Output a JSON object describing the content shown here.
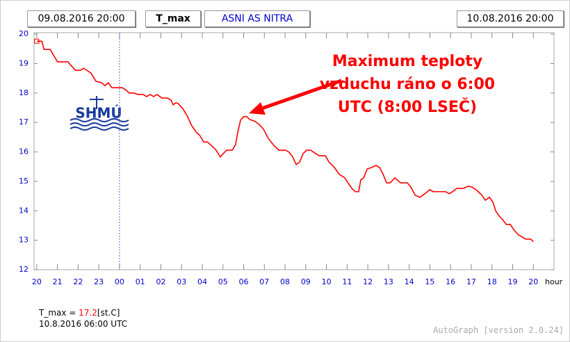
{
  "header": {
    "start": "09.08.2016 20:00",
    "station": "ASNI AS NITRA",
    "end": "10.08.2016 20:00"
  },
  "chart_data": {
    "type": "line",
    "logo": "SHMÚ",
    "annotation": [
      "Maximum teploty",
      "vzduchu ráno o 6:00",
      "UTC (8:00 LSEČ)"
    ],
    "x_label": "hour",
    "xlim": [
      -0.13,
      25
    ],
    "ylim": [
      12,
      20.05
    ],
    "xticks": [
      {
        "value": 0,
        "label": "20"
      },
      {
        "value": 1,
        "label": "21"
      },
      {
        "value": 2,
        "label": "22"
      },
      {
        "value": 3,
        "label": "23"
      },
      {
        "value": 4,
        "label": "00"
      },
      {
        "value": 5,
        "label": "01"
      },
      {
        "value": 6,
        "label": "02"
      },
      {
        "value": 7,
        "label": "03"
      },
      {
        "value": 8,
        "label": "04"
      },
      {
        "value": 9,
        "label": "05"
      },
      {
        "value": 10,
        "label": "06"
      },
      {
        "value": 11,
        "label": "07"
      },
      {
        "value": 12,
        "label": "08"
      },
      {
        "value": 13,
        "label": "09"
      },
      {
        "value": 14,
        "label": "10"
      },
      {
        "value": 15,
        "label": "11"
      },
      {
        "value": 16,
        "label": "12"
      },
      {
        "value": 17,
        "label": "13"
      },
      {
        "value": 18,
        "label": "14"
      },
      {
        "value": 19,
        "label": "15"
      },
      {
        "value": 20,
        "label": "16"
      },
      {
        "value": 21,
        "label": "17"
      },
      {
        "value": 22,
        "label": "18"
      },
      {
        "value": 23,
        "label": "19"
      },
      {
        "value": 24,
        "label": "20"
      }
    ],
    "yticks": [
      12,
      13,
      14,
      15,
      16,
      17,
      18,
      19,
      20
    ],
    "x": [
      0,
      0.25,
      0.35,
      0.65,
      1.0,
      1.5,
      1.87,
      2.1,
      2.27,
      2.62,
      2.86,
      3.13,
      3.3,
      3.46,
      3.63,
      4.13,
      4.3,
      4.47,
      4.7,
      4.91,
      5.14,
      5.31,
      5.48,
      5.65,
      5.81,
      6.05,
      6.32,
      6.49,
      6.59,
      6.72,
      6.82,
      7.06,
      7.26,
      7.49,
      7.73,
      7.86,
      8.07,
      8.24,
      8.44,
      8.67,
      8.87,
      9.01,
      9.18,
      9.45,
      9.61,
      9.71,
      9.85,
      10.0,
      10.15,
      10.29,
      10.52,
      10.76,
      10.96,
      11.19,
      11.46,
      11.7,
      12.03,
      12.2,
      12.37,
      12.54,
      12.71,
      12.87,
      13.04,
      13.24,
      13.38,
      13.65,
      13.95,
      14.12,
      14.39,
      14.62,
      14.89,
      15.06,
      15.23,
      15.39,
      15.56,
      15.66,
      15.8,
      15.97,
      16.17,
      16.4,
      16.57,
      16.74,
      16.91,
      17.08,
      17.31,
      17.58,
      17.91,
      18.08,
      18.29,
      18.52,
      18.76,
      18.99,
      19.16,
      19.33,
      19.76,
      19.93,
      20.1,
      20.3,
      20.61,
      20.84,
      21.04,
      21.28,
      21.51,
      21.68,
      21.88,
      22.05,
      22.18,
      22.35,
      22.52,
      22.69,
      22.89,
      23.06,
      23.29,
      23.46,
      23.63,
      23.87,
      24.0
    ],
    "series": [
      {
        "name": "T_max",
        "color": "#ff0000",
        "values": [
          19.76,
          19.76,
          19.48,
          19.48,
          19.06,
          19.06,
          18.77,
          18.77,
          18.84,
          18.68,
          18.4,
          18.35,
          18.25,
          18.35,
          18.18,
          18.18,
          18.11,
          18.0,
          18.0,
          17.95,
          17.95,
          17.88,
          17.95,
          17.88,
          17.95,
          17.83,
          17.83,
          17.76,
          17.6,
          17.67,
          17.65,
          17.47,
          17.24,
          16.89,
          16.65,
          16.58,
          16.34,
          16.34,
          16.22,
          16.06,
          15.83,
          15.94,
          16.06,
          16.06,
          16.25,
          16.65,
          17.08,
          17.2,
          17.2,
          17.1,
          17.05,
          16.93,
          16.77,
          16.46,
          16.22,
          16.06,
          16.06,
          15.99,
          15.83,
          15.57,
          15.66,
          15.94,
          16.06,
          16.06,
          15.99,
          15.87,
          15.87,
          15.66,
          15.47,
          15.24,
          15.12,
          14.93,
          14.76,
          14.65,
          14.65,
          15.05,
          15.12,
          15.42,
          15.47,
          15.54,
          15.47,
          15.24,
          14.95,
          14.95,
          15.12,
          14.95,
          14.95,
          14.81,
          14.53,
          14.46,
          14.58,
          14.72,
          14.65,
          14.65,
          14.65,
          14.58,
          14.65,
          14.76,
          14.76,
          14.83,
          14.81,
          14.69,
          14.53,
          14.36,
          14.46,
          14.29,
          14.0,
          13.82,
          13.7,
          13.54,
          13.54,
          13.35,
          13.18,
          13.11,
          13.04,
          13.04,
          12.95
        ]
      }
    ]
  },
  "footer": {
    "readout_prefix": "T_max = ",
    "readout_value": 17.2,
    "readout_unit": "[st.C]",
    "readout_time": "10.8.2016 06:00 UTC",
    "version": "AutoGraph [version 2.0.24]"
  }
}
